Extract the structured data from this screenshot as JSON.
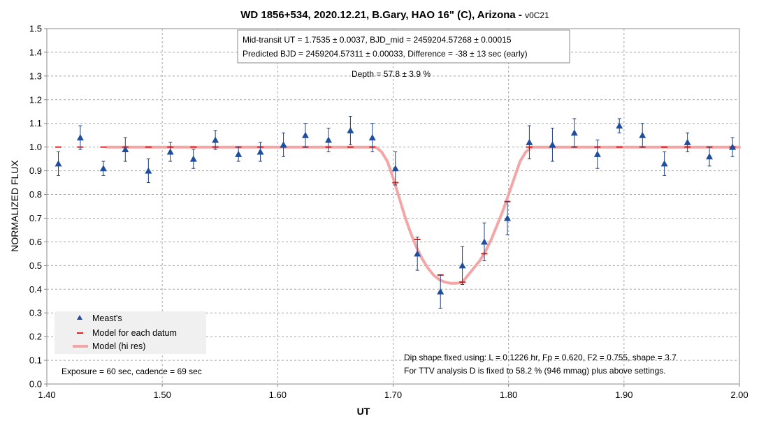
{
  "chart_data": {
    "type": "scatter",
    "title": "WD 1856+534, 2020.12.21, B.Gary, HAO 16\" (C), Arizona - ",
    "title_version": "v0C21",
    "xlabel": "UT",
    "ylabel": "NORMALIZED FLUX",
    "xlim": [
      1.4,
      2.0
    ],
    "ylim": [
      0.0,
      1.5
    ],
    "x_ticks": [
      "1.40",
      "1.50",
      "1.60",
      "1.70",
      "1.80",
      "1.90",
      "2.00"
    ],
    "y_ticks": [
      "0.0",
      "0.1",
      "0.2",
      "0.3",
      "0.4",
      "0.5",
      "0.6",
      "0.7",
      "0.8",
      "0.9",
      "1.0",
      "1.1",
      "1.2",
      "1.3",
      "1.4",
      "1.5"
    ],
    "grid": "dashed",
    "legend_position": "bottom-left",
    "colors": {
      "measured": "#1f4e9c",
      "model_datum": "#e02020",
      "model_hires": "#f4a6a6",
      "errorbar": "#1f3f7a"
    },
    "annotations": {
      "box_line1": "Mid-transit UT = 1.7535 ± 0.0037, BJD_mid = 2459204.57268 ± 0.00015",
      "box_line2": "Predicted BJD = 2459204.57311 ± 0.00033, Difference = -38 ± 13 sec (early)",
      "depth": "Depth = 57.8 ± 3.9 %",
      "exposure": "Exposure = 60 sec, cadence = 69 sec",
      "dip_line1": "Dip shape fixed using:  L = 0.1226 hr, Fp = 0.620, F2 = 0.755, shape = 3.7",
      "dip_line2": "For TTV analysis D is fixed  to 58.2 % (946 mmag) plus above settings."
    },
    "legend": [
      {
        "label": "Meast's",
        "marker": "triangle"
      },
      {
        "label": "Model for each datum",
        "marker": "dash"
      },
      {
        "label": "Model (hi res)",
        "marker": "line"
      }
    ],
    "series": [
      {
        "name": "Meast's",
        "x": [
          1.41,
          1.429,
          1.449,
          1.468,
          1.488,
          1.507,
          1.527,
          1.546,
          1.566,
          1.585,
          1.605,
          1.624,
          1.644,
          1.663,
          1.682,
          1.702,
          1.721,
          1.741,
          1.76,
          1.779,
          1.799,
          1.818,
          1.838,
          1.857,
          1.877,
          1.896,
          1.916,
          1.935,
          1.955,
          1.974,
          1.994
        ],
        "y": [
          0.93,
          1.04,
          0.91,
          0.99,
          0.9,
          0.98,
          0.95,
          1.03,
          0.97,
          0.98,
          1.01,
          1.05,
          1.03,
          1.07,
          1.04,
          0.91,
          0.55,
          0.39,
          0.5,
          0.6,
          0.7,
          1.02,
          1.01,
          1.06,
          0.97,
          1.09,
          1.05,
          0.93,
          1.02,
          0.96,
          1.0
        ],
        "err": [
          0.05,
          0.05,
          0.03,
          0.05,
          0.05,
          0.04,
          0.04,
          0.04,
          0.03,
          0.04,
          0.05,
          0.05,
          0.05,
          0.06,
          0.06,
          0.07,
          0.07,
          0.07,
          0.08,
          0.08,
          0.07,
          0.07,
          0.07,
          0.06,
          0.06,
          0.03,
          0.05,
          0.05,
          0.04,
          0.04,
          0.04
        ]
      },
      {
        "name": "Model for each datum",
        "x": [
          1.41,
          1.429,
          1.449,
          1.468,
          1.488,
          1.507,
          1.527,
          1.546,
          1.566,
          1.585,
          1.605,
          1.624,
          1.644,
          1.663,
          1.682,
          1.702,
          1.721,
          1.741,
          1.76,
          1.779,
          1.799,
          1.818,
          1.838,
          1.857,
          1.877,
          1.896,
          1.916,
          1.935,
          1.955,
          1.974,
          1.994
        ],
        "y": [
          1.0,
          1.0,
          1.0,
          1.0,
          1.0,
          1.0,
          1.0,
          1.0,
          1.0,
          1.0,
          1.0,
          1.0,
          1.0,
          1.0,
          1.0,
          0.85,
          0.61,
          0.46,
          0.43,
          0.55,
          0.77,
          1.0,
          1.0,
          1.0,
          1.0,
          1.0,
          1.0,
          1.0,
          1.0,
          1.0,
          1.0
        ]
      },
      {
        "name": "Model (hi res)",
        "x": [
          1.452,
          1.685,
          1.69,
          1.695,
          1.7,
          1.705,
          1.71,
          1.715,
          1.72,
          1.725,
          1.73,
          1.735,
          1.74,
          1.745,
          1.75,
          1.755,
          1.76,
          1.765,
          1.77,
          1.775,
          1.78,
          1.785,
          1.79,
          1.795,
          1.8,
          1.805,
          1.81,
          1.815,
          1.82,
          2.0
        ],
        "y": [
          1.0,
          1.0,
          0.98,
          0.94,
          0.87,
          0.79,
          0.71,
          0.64,
          0.58,
          0.53,
          0.49,
          0.46,
          0.44,
          0.43,
          0.425,
          0.425,
          0.43,
          0.46,
          0.49,
          0.52,
          0.56,
          0.61,
          0.67,
          0.73,
          0.8,
          0.87,
          0.94,
          0.98,
          1.0,
          1.0
        ]
      }
    ]
  }
}
